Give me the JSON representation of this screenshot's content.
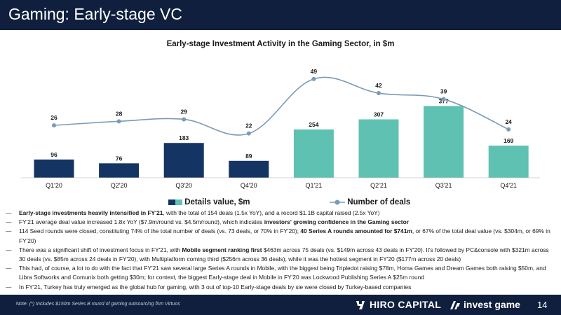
{
  "header": {
    "title": "Gaming: Early-stage VC"
  },
  "colors": {
    "navy": "#0f1f3d",
    "dark_bar": "#143463",
    "teal_bar": "#5fc1b1",
    "line": "#7a9ab8"
  },
  "chart_data": {
    "type": "bar+line",
    "title": "Early-stage Investment Activity in the Gaming Sector, in $m",
    "categories": [
      "Q1'20",
      "Q2'20",
      "Q3'20",
      "Q4'20",
      "Q1'21",
      "Q2'21",
      "Q3'21",
      "Q4'21"
    ],
    "series": [
      {
        "name": "Details value, $m",
        "kind": "bar",
        "values": [
          96,
          76,
          183,
          89,
          254,
          307,
          377,
          169
        ]
      },
      {
        "name": "Number of deals",
        "kind": "line",
        "values": [
          26,
          28,
          29,
          22,
          49,
          42,
          39,
          24
        ]
      }
    ],
    "legend": [
      "Details value, $m",
      "Number of deals"
    ]
  },
  "bullets": [
    {
      "dash": "—",
      "parts": [
        {
          "b": true,
          "t": "Early-stage investments heavily intensified in FY'21"
        },
        {
          "b": false,
          "t": ", with the total of 154 deals (1.5x YoY), and a record $1.1B capital raised (2.5x YoY)"
        }
      ]
    },
    {
      "dash": "—",
      "parts": [
        {
          "b": false,
          "t": "FY'21 average deal value increased 1.8x YoY ($7.9m/round vs. $4.5m/round), which indicates "
        },
        {
          "b": true,
          "t": "investors' growing confidence in the Gaming sector"
        }
      ]
    },
    {
      "dash": "—",
      "parts": [
        {
          "b": false,
          "t": "114 Seed rounds were closed, constituting 74% of the total number of deals (vs. 73 deals, or 70% in FY'20); "
        },
        {
          "b": true,
          "t": "40 Series A rounds amounted for $741m"
        },
        {
          "b": false,
          "t": ", or 67% of the total deal value (vs. $304m, or 69% in FY'20)"
        }
      ]
    },
    {
      "dash": "—",
      "parts": [
        {
          "b": false,
          "t": "There was a significant shift of investment focus in FY'21, with "
        },
        {
          "b": true,
          "t": "Mobile segment ranking first"
        },
        {
          "b": false,
          "t": " $463m across 75 deals (vs. $149m across 43 deals in FY'20). It's followed by PC&console with $321m across 30 deals (vs. $85m across 24 deals in FY'20), with Multiplatform coming third ($256m across 36 deals), while it was the hottest segment in FY'20 ($177m across 20 deals)"
        }
      ]
    },
    {
      "dash": "—",
      "parts": [
        {
          "b": false,
          "t": "This had, of course, a lot to do with the fact that FY'21 saw several large Series A rounds in Mobile, with the biggest being Tripledot raising $78m, Homa Games and Dream Games both raising $50m, and Libra Softworks and Comunix both getting $30m; for context, the biggest Early-stage deal in Mobile in FY'20 was Lockwood Publishing Series A $25m round"
        }
      ]
    },
    {
      "dash": "—",
      "parts": [
        {
          "b": false,
          "t": "In FY'21, Turkey has truly emerged as the global hub for gaming, with 3 out of top-10 Early-stage deals by sie were closed by Turkey-based companies"
        }
      ]
    }
  ],
  "footer": {
    "note_label": "Note:",
    "note_text": "(*) Includes $150m Series B round of gaming outsourcing firm Virtuos",
    "brand1": "HIRO CAPITAL",
    "brand2": "invest game",
    "page": "14"
  }
}
